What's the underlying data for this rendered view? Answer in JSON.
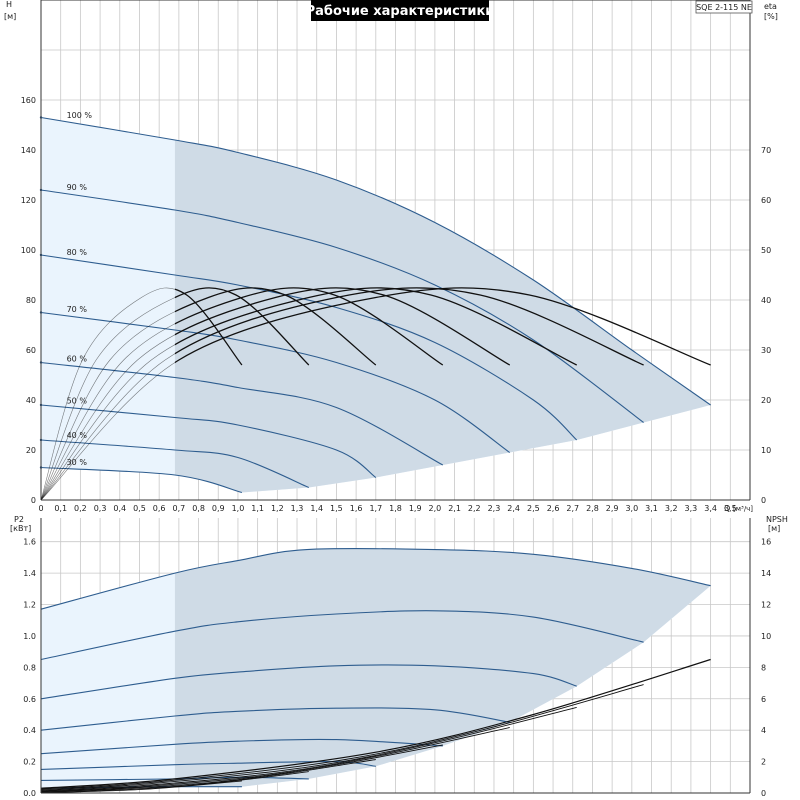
{
  "title": "Рабочие характеристики",
  "model": "SQE 2-115 NE",
  "colors": {
    "curve": "#2e5d8f",
    "eff": "#111111",
    "region_light": "#eaf4fd",
    "region_dark": "#cfdbe6",
    "grid": "#c8c8c8",
    "title_bg": "#000000",
    "title_fg": "#ffffff"
  },
  "chart_data": [
    {
      "id": "performance",
      "type": "line",
      "xlabel": "Q [м³/ч]",
      "x_axis_name": "Q",
      "x_axis_unit": "[м³/ч]",
      "xlim": [
        0,
        3.6
      ],
      "x_ticks": [
        "0",
        "0,1",
        "0,2",
        "0,3",
        "0,4",
        "0,5",
        "0,6",
        "0,7",
        "0,8",
        "0,9",
        "1,0",
        "1,1",
        "1,2",
        "1,3",
        "1,4",
        "1,5",
        "1,6",
        "1,7",
        "1,8",
        "1,9",
        "2,0",
        "2,1",
        "2,2",
        "2,3",
        "2,4",
        "2,5",
        "2,6",
        "2,7",
        "2,8",
        "2,9",
        "3,0",
        "3,1",
        "3,2",
        "3,3",
        "3,4",
        "3,5"
      ],
      "ylabel_left": "H",
      "ylabel_left_unit": "[м]",
      "ylim_left": [
        0,
        200
      ],
      "y_ticks_left": [
        "0",
        "20",
        "40",
        "60",
        "80",
        "100",
        "120",
        "140",
        "160"
      ],
      "ylabel_right": "eta",
      "ylabel_right_unit": "[%]",
      "ylim_right": [
        0,
        100
      ],
      "y_ticks_right": [
        "0",
        "10",
        "20",
        "30",
        "40",
        "50",
        "60",
        "70"
      ],
      "min_flow_boundary": 0.68,
      "speed_labels": [
        "100 %",
        "90 %",
        "80 %",
        "70 %",
        "60 %",
        "50 %",
        "40 %",
        "30 %"
      ],
      "head_series": [
        {
          "name": "100 %",
          "x": [
            0,
            0.68,
            1.0,
            1.5,
            2.0,
            2.5,
            3.0,
            3.4
          ],
          "y": [
            153,
            144,
            139,
            128,
            111,
            88,
            60,
            38
          ]
        },
        {
          "name": "90 %",
          "x": [
            0,
            0.68,
            1.0,
            1.5,
            2.0,
            2.5,
            3.06
          ],
          "y": [
            124,
            116,
            111,
            101,
            86,
            64,
            31
          ]
        },
        {
          "name": "80 %",
          "x": [
            0,
            0.68,
            1.0,
            1.5,
            2.0,
            2.5,
            2.72
          ],
          "y": [
            98,
            90,
            86,
            77,
            63,
            40,
            24
          ]
        },
        {
          "name": "70 %",
          "x": [
            0,
            0.68,
            1.0,
            1.5,
            2.0,
            2.38
          ],
          "y": [
            75,
            68,
            64,
            55,
            40,
            19
          ]
        },
        {
          "name": "60 %",
          "x": [
            0,
            0.68,
            1.0,
            1.5,
            2.04
          ],
          "y": [
            55,
            49,
            45,
            37,
            14
          ]
        },
        {
          "name": "50 %",
          "x": [
            0,
            0.68,
            1.0,
            1.5,
            1.7
          ],
          "y": [
            38,
            33,
            30,
            20,
            9
          ]
        },
        {
          "name": "40 %",
          "x": [
            0,
            0.68,
            1.0,
            1.36
          ],
          "y": [
            24,
            20,
            17,
            5
          ]
        },
        {
          "name": "30 %",
          "x": [
            0,
            0.68,
            1.02
          ],
          "y": [
            13,
            10,
            3
          ]
        }
      ],
      "efficiency_series": [
        {
          "name": "100 %",
          "x": [
            0,
            0.7,
            1.7,
            2.48,
            3.4
          ],
          "y": [
            0,
            28,
            40.5,
            41,
            27
          ]
        },
        {
          "name": "90 %",
          "x": [
            0,
            0.63,
            1.5,
            2.23,
            3.06
          ],
          "y": [
            0,
            28,
            40.5,
            41,
            27
          ]
        },
        {
          "name": "80 %",
          "x": [
            0,
            0.56,
            1.36,
            1.98,
            2.72
          ],
          "y": [
            0,
            28,
            40.5,
            41,
            27
          ]
        },
        {
          "name": "70 %",
          "x": [
            0,
            0.49,
            1.19,
            1.74,
            2.38
          ],
          "y": [
            0,
            28,
            40.5,
            41,
            27
          ]
        },
        {
          "name": "60 %",
          "x": [
            0,
            0.42,
            1.02,
            1.49,
            2.04
          ],
          "y": [
            0,
            28,
            40.5,
            41,
            27
          ]
        },
        {
          "name": "50 %",
          "x": [
            0,
            0.35,
            0.85,
            1.24,
            1.7
          ],
          "y": [
            0,
            28,
            40.5,
            41,
            27
          ]
        },
        {
          "name": "40 %",
          "x": [
            0,
            0.28,
            0.68,
            0.99,
            1.36
          ],
          "y": [
            0,
            28,
            40.5,
            41,
            27
          ]
        },
        {
          "name": "30 %",
          "x": [
            0,
            0.21,
            0.51,
            0.74,
            1.02
          ],
          "y": [
            0,
            28,
            40.5,
            41,
            27
          ]
        }
      ]
    },
    {
      "id": "power_npsh",
      "type": "line",
      "xlim": [
        0,
        3.6
      ],
      "ylabel_left": "P2",
      "ylabel_left_unit": "[кВт]",
      "ylim_left": [
        0,
        1.7
      ],
      "y_ticks_left": [
        "0.0",
        "0.2",
        "0.4",
        "0.6",
        "0.8",
        "1.0",
        "1.2",
        "1.4",
        "1.6"
      ],
      "ylabel_right": "NPSH",
      "ylabel_right_unit": "[м]",
      "ylim_right": [
        0,
        17
      ],
      "y_ticks_right": [
        "0",
        "2",
        "4",
        "6",
        "8",
        "10",
        "12",
        "14",
        "16"
      ],
      "power_series": [
        {
          "name": "100 %",
          "x": [
            0,
            0.68,
            1.0,
            1.35,
            2.0,
            2.5,
            3.0,
            3.4
          ],
          "y": [
            1.17,
            1.4,
            1.48,
            1.55,
            1.55,
            1.52,
            1.43,
            1.32
          ]
        },
        {
          "name": "90 %",
          "x": [
            0,
            0.68,
            1.0,
            1.5,
            2.0,
            2.5,
            3.06
          ],
          "y": [
            0.85,
            1.03,
            1.09,
            1.14,
            1.16,
            1.12,
            0.96
          ]
        },
        {
          "name": "80 %",
          "x": [
            0,
            0.68,
            1.0,
            1.5,
            2.0,
            2.5,
            2.72
          ],
          "y": [
            0.6,
            0.73,
            0.77,
            0.81,
            0.81,
            0.76,
            0.68
          ]
        },
        {
          "name": "70 %",
          "x": [
            0,
            0.68,
            1.0,
            1.5,
            2.0,
            2.38
          ],
          "y": [
            0.4,
            0.49,
            0.52,
            0.54,
            0.53,
            0.45
          ]
        },
        {
          "name": "60 %",
          "x": [
            0,
            0.68,
            1.0,
            1.5,
            2.04
          ],
          "y": [
            0.25,
            0.31,
            0.33,
            0.34,
            0.3
          ]
        },
        {
          "name": "50 %",
          "x": [
            0,
            0.68,
            1.0,
            1.5,
            1.7
          ],
          "y": [
            0.15,
            0.18,
            0.19,
            0.2,
            0.17
          ]
        },
        {
          "name": "40 %",
          "x": [
            0,
            0.68,
            1.0,
            1.36
          ],
          "y": [
            0.08,
            0.09,
            0.1,
            0.09
          ]
        },
        {
          "name": "30 %",
          "x": [
            0,
            0.68,
            1.02
          ],
          "y": [
            0.03,
            0.04,
            0.04
          ]
        }
      ],
      "npsh_series": [
        {
          "name": "100 %",
          "x": [
            0,
            0.68,
            1.7,
            2.5,
            3.4
          ],
          "y": [
            0.3,
            0.9,
            2.6,
            5.0,
            8.5
          ]
        },
        {
          "name": "90 %",
          "x": [
            0,
            0.61,
            1.53,
            2.25,
            3.06
          ],
          "y": [
            0.25,
            0.73,
            2.1,
            4.05,
            6.9
          ]
        },
        {
          "name": "80 %",
          "x": [
            0,
            0.54,
            1.36,
            2.0,
            2.72
          ],
          "y": [
            0.2,
            0.58,
            1.66,
            3.2,
            5.45
          ]
        },
        {
          "name": "70 %",
          "x": [
            0,
            0.48,
            1.19,
            1.75,
            2.38
          ],
          "y": [
            0.15,
            0.44,
            1.27,
            2.45,
            4.17
          ]
        },
        {
          "name": "60 %",
          "x": [
            0,
            0.41,
            1.02,
            1.5,
            2.04
          ],
          "y": [
            0.11,
            0.32,
            0.94,
            1.8,
            3.06
          ]
        },
        {
          "name": "50 %",
          "x": [
            0,
            0.34,
            0.85,
            1.25,
            1.7
          ],
          "y": [
            0.08,
            0.23,
            0.65,
            1.25,
            2.13
          ]
        },
        {
          "name": "40 %",
          "x": [
            0,
            0.27,
            0.68,
            1.0,
            1.36
          ],
          "y": [
            0.05,
            0.14,
            0.42,
            0.8,
            1.36
          ]
        },
        {
          "name": "30 %",
          "x": [
            0,
            0.2,
            0.51,
            0.75,
            1.02
          ],
          "y": [
            0.03,
            0.08,
            0.23,
            0.45,
            0.77
          ]
        }
      ]
    }
  ]
}
